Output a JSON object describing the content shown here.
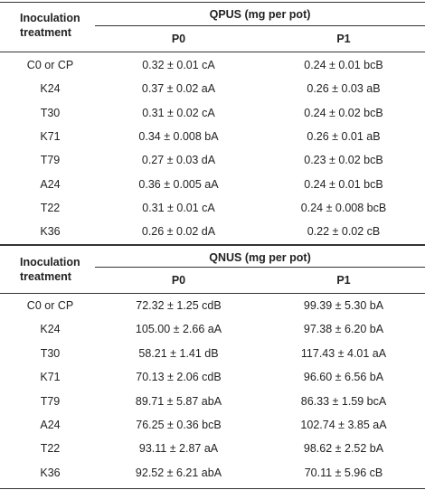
{
  "qpus": {
    "treatment_header": [
      "Inoculation",
      "treatment"
    ],
    "group_header": "QPUS (mg per pot)",
    "col_p0": "P0",
    "col_p1": "P1",
    "rows": [
      {
        "t": "C0 or CP",
        "p0": "0.32 ± 0.01 cA",
        "p1": "0.24 ± 0.01 bcB"
      },
      {
        "t": "K24",
        "p0": "0.37 ± 0.02 aA",
        "p1": "0.26 ± 0.03 aB"
      },
      {
        "t": "T30",
        "p0": "0.31 ± 0.02 cA",
        "p1": "0.24 ± 0.02 bcB"
      },
      {
        "t": "K71",
        "p0": "0.34 ± 0.008 bA",
        "p1": "0.26 ± 0.01 aB"
      },
      {
        "t": "T79",
        "p0": "0.27 ± 0.03 dA",
        "p1": "0.23 ± 0.02 bcB"
      },
      {
        "t": "A24",
        "p0": "0.36 ± 0.005 aA",
        "p1": "0.24 ± 0.01 bcB"
      },
      {
        "t": "T22",
        "p0": "0.31 ± 0.01 cA",
        "p1": "0.24 ± 0.008 bcB"
      },
      {
        "t": "K36",
        "p0": "0.26 ± 0.02 dA",
        "p1": "0.22 ± 0.02 cB"
      }
    ]
  },
  "qnus": {
    "treatment_header": [
      "Inoculation",
      "treatment"
    ],
    "group_header": "QNUS (mg per pot)",
    "col_p0": "P0",
    "col_p1": "P1",
    "rows": [
      {
        "t": "C0 or CP",
        "p0": "72.32 ± 1.25 cdB",
        "p1": "99.39 ± 5.30 bA"
      },
      {
        "t": "K24",
        "p0": "105.00 ± 2.66 aA",
        "p1": "97.38 ± 6.20 bA"
      },
      {
        "t": "T30",
        "p0": "58.21 ± 1.41 dB",
        "p1": "117.43 ± 4.01 aA"
      },
      {
        "t": "K71",
        "p0": "70.13 ± 2.06 cdB",
        "p1": "96.60 ± 6.56 bA"
      },
      {
        "t": "T79",
        "p0": "89.71 ± 5.87 abA",
        "p1": "86.33 ± 1.59 bcA"
      },
      {
        "t": "A24",
        "p0": "76.25 ± 0.36 bcB",
        "p1": "102.74 ± 3.85 aA"
      },
      {
        "t": "T22",
        "p0": "93.11 ± 2.87 aA",
        "p1": "98.62 ± 2.52 bA"
      },
      {
        "t": "K36",
        "p0": "92.52 ± 6.21 abA",
        "p1": "70.11 ± 5.96 cB"
      }
    ]
  }
}
